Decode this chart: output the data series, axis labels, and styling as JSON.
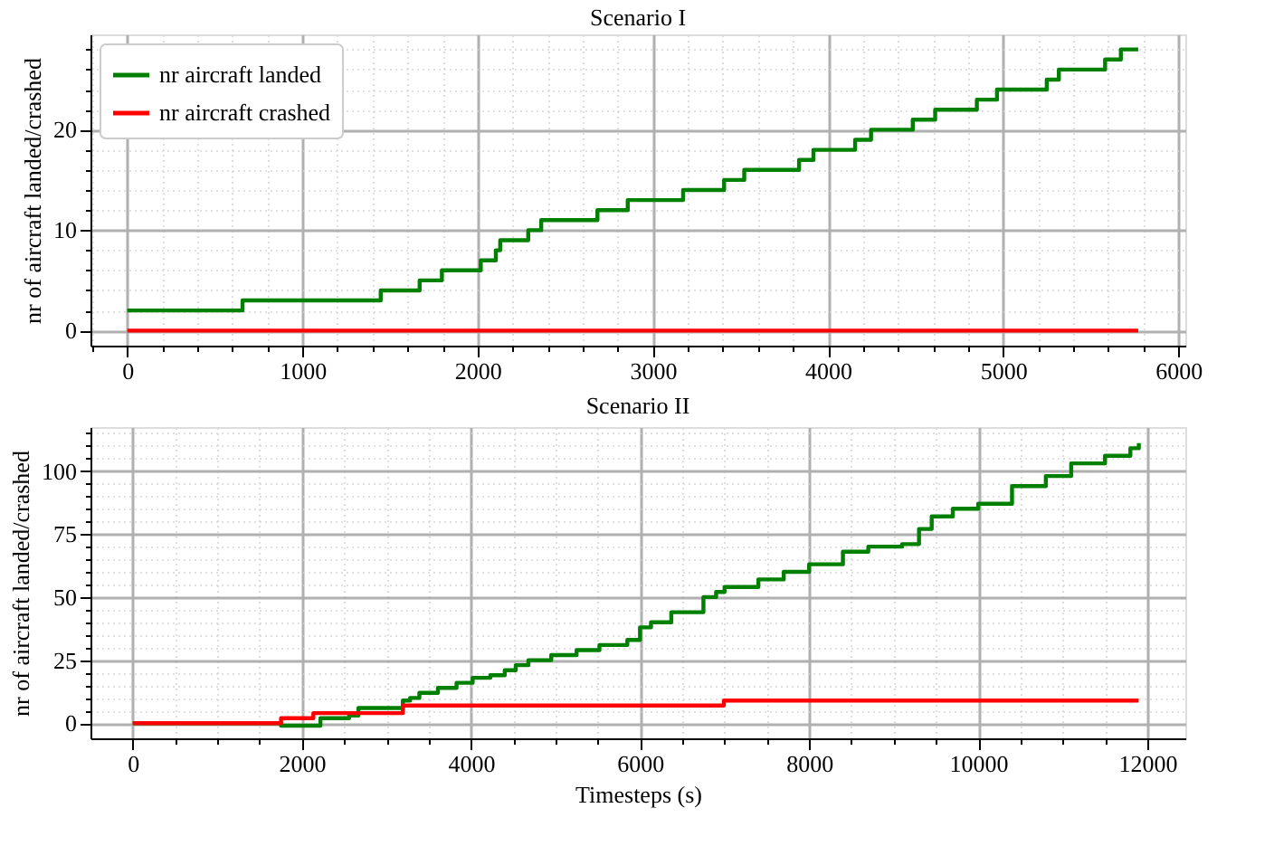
{
  "chart_data": [
    {
      "type": "step",
      "title": "Scenario I",
      "ylabel": "nr of aircraft landed/crashed",
      "xlim": [
        -210,
        6040
      ],
      "ylim": [
        -1.5,
        29.5
      ],
      "xticks": [
        0,
        1000,
        2000,
        3000,
        4000,
        5000,
        6000,
        {
          "value": -200,
          "label": null
        },
        {
          "value": 200,
          "label": null
        },
        {
          "value": 400,
          "label": null
        },
        {
          "value": 600,
          "label": null
        },
        {
          "value": 800,
          "label": null
        },
        {
          "value": 1200,
          "label": null
        },
        {
          "value": 1400,
          "label": null
        },
        {
          "value": 1600,
          "label": null
        },
        {
          "value": 1800,
          "label": null
        },
        {
          "value": 2200,
          "label": null
        },
        {
          "value": 2400,
          "label": null
        },
        {
          "value": 2600,
          "label": null
        },
        {
          "value": 2800,
          "label": null
        },
        {
          "value": 3200,
          "label": null
        },
        {
          "value": 3400,
          "label": null
        },
        {
          "value": 3600,
          "label": null
        },
        {
          "value": 3800,
          "label": null
        },
        {
          "value": 4200,
          "label": null
        },
        {
          "value": 4400,
          "label": null
        },
        {
          "value": 4600,
          "label": null
        },
        {
          "value": 4800,
          "label": null
        },
        {
          "value": 5200,
          "label": null
        },
        {
          "value": 5400,
          "label": null
        },
        {
          "value": 5600,
          "label": null
        },
        {
          "value": 5800,
          "label": null
        }
      ],
      "yticks": [
        0,
        10,
        20,
        {
          "value": 2,
          "label": null
        },
        {
          "value": 4,
          "label": null
        },
        {
          "value": 6,
          "label": null
        },
        {
          "value": 8,
          "label": null
        },
        {
          "value": 12,
          "label": null
        },
        {
          "value": 14,
          "label": null
        },
        {
          "value": 16,
          "label": null
        },
        {
          "value": 18,
          "label": null
        },
        {
          "value": 22,
          "label": null
        },
        {
          "value": 24,
          "label": null
        },
        {
          "value": 26,
          "label": null
        },
        {
          "value": 28,
          "label": null
        }
      ],
      "grid": true,
      "legend": "top left",
      "line_style": "solid",
      "series": [
        {
          "name": "nr aircraft landed",
          "color": "#008000",
          "x": [
            0,
            658,
            1447,
            1669,
            1796,
            2018,
            2104,
            2129,
            2289,
            2363,
            2684,
            2857,
            3173,
            3407,
            3522,
            3835,
            3917,
            4155,
            4246,
            4484,
            4612,
            4850,
            4965,
            5249,
            5318,
            5582,
            5672,
            5771
          ],
          "values": [
            2,
            3,
            4,
            5,
            6,
            7,
            8,
            9,
            10,
            11,
            12,
            13,
            14,
            15,
            16,
            17,
            18,
            19,
            20,
            21,
            22,
            23,
            24,
            25,
            26,
            27,
            28,
            28
          ]
        },
        {
          "name": "nr aircraft crashed",
          "color": "#ff0000",
          "x": [
            0,
            5771
          ],
          "values": [
            0,
            0
          ]
        }
      ]
    },
    {
      "type": "step",
      "title": "Scenario II",
      "xlabel": "Timesteps (s)",
      "ylabel": "nr of aircraft landed/crashed",
      "xlim": [
        -500,
        12450
      ],
      "ylim": [
        -6,
        117.4
      ],
      "xticks": [
        0,
        2000,
        4000,
        6000,
        8000,
        10000,
        12000,
        {
          "value": 500,
          "label": null
        },
        {
          "value": 1000,
          "label": null
        },
        {
          "value": 1500,
          "label": null
        },
        {
          "value": 2500,
          "label": null
        },
        {
          "value": 3000,
          "label": null
        },
        {
          "value": 3500,
          "label": null
        },
        {
          "value": 4500,
          "label": null
        },
        {
          "value": 5000,
          "label": null
        },
        {
          "value": 5500,
          "label": null
        },
        {
          "value": 6500,
          "label": null
        },
        {
          "value": 7000,
          "label": null
        },
        {
          "value": 7500,
          "label": null
        },
        {
          "value": 8500,
          "label": null
        },
        {
          "value": 9000,
          "label": null
        },
        {
          "value": 9500,
          "label": null
        },
        {
          "value": 10500,
          "label": null
        },
        {
          "value": 11000,
          "label": null
        },
        {
          "value": 11500,
          "label": null
        }
      ],
      "yticks": [
        0,
        25,
        50,
        75,
        100,
        {
          "value": 5,
          "label": null
        },
        {
          "value": 10,
          "label": null
        },
        {
          "value": 15,
          "label": null
        },
        {
          "value": 20,
          "label": null
        },
        {
          "value": 30,
          "label": null
        },
        {
          "value": 35,
          "label": null
        },
        {
          "value": 40,
          "label": null
        },
        {
          "value": 45,
          "label": null
        },
        {
          "value": 55,
          "label": null
        },
        {
          "value": 60,
          "label": null
        },
        {
          "value": 65,
          "label": null
        },
        {
          "value": 70,
          "label": null
        },
        {
          "value": 80,
          "label": null
        },
        {
          "value": 85,
          "label": null
        },
        {
          "value": 90,
          "label": null
        },
        {
          "value": 95,
          "label": null
        },
        {
          "value": 105,
          "label": null
        },
        {
          "value": 110,
          "label": null
        },
        {
          "value": 115,
          "label": null
        }
      ],
      "grid": true,
      "legend": "top left",
      "line_style": "solid",
      "series": [
        {
          "name": "nr aircraft landed",
          "color": "#008000",
          "x": [
            0,
            1754,
            2220,
            2559,
            2669,
            3195,
            3280,
            3390,
            3610,
            3830,
            4020,
            4230,
            4400,
            4530,
            4680,
            4950,
            5250,
            5520,
            5850,
            6000,
            6130,
            6370,
            6750,
            6900,
            7000,
            7400,
            7700,
            8000,
            8400,
            8700,
            9100,
            9300,
            9450,
            9700,
            10000,
            10400,
            10800,
            11100,
            11500,
            11800,
            11900
          ],
          "values": [
            0,
            -1,
            2,
            3,
            6,
            9,
            10,
            12,
            14,
            16,
            18,
            19,
            21,
            23,
            25,
            27,
            29,
            31,
            33,
            38,
            40,
            44,
            50,
            52,
            54,
            57,
            60,
            63,
            68,
            70,
            71,
            77,
            82,
            85,
            87,
            94,
            98,
            103,
            106,
            109,
            111
          ]
        },
        {
          "name": "nr aircraft crashed",
          "color": "#ff0000",
          "x": [
            0,
            1754,
            2136,
            3195,
            6992,
            11898
          ],
          "values": [
            0,
            2,
            4,
            7,
            9,
            9
          ]
        }
      ]
    }
  ]
}
